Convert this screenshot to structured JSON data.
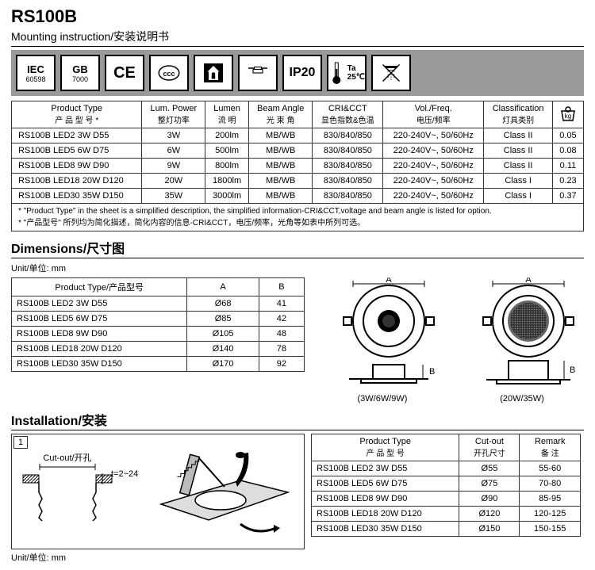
{
  "header": {
    "title": "RS100B",
    "subtitle": "Mounting instruction/安装说明书"
  },
  "badges": {
    "iec": "IEC",
    "iec_sub": "60598",
    "gb": "GB",
    "gb_sub": "7000",
    "ce": "CE",
    "ip20": "IP20",
    "ta": "Ta",
    "ta_val": "25℃"
  },
  "spec_table": {
    "headers": [
      {
        "en": "Product Type",
        "cn": "产 品 型 号 *"
      },
      {
        "en": "Lum. Power",
        "cn": "整灯功率"
      },
      {
        "en": "Lumen",
        "cn": "流 明"
      },
      {
        "en": "Beam Angle",
        "cn": "光 束 角"
      },
      {
        "en": "CRI&CCT",
        "cn": "显色指数&色温"
      },
      {
        "en": "Vol./Freq.",
        "cn": "电压/频率"
      },
      {
        "en": "Classification",
        "cn": "灯具类别"
      }
    ],
    "weight_icon_label": "kg",
    "rows": [
      {
        "type": "RS100B LED2 3W D55",
        "power": "3W",
        "lumen": "200lm",
        "beam": "MB/WB",
        "cri": "830/840/850",
        "vol": "220-240V~, 50/60Hz",
        "cls": "Class II",
        "wt": "0.05"
      },
      {
        "type": "RS100B LED5 6W D75",
        "power": "6W",
        "lumen": "500lm",
        "beam": "MB/WB",
        "cri": "830/840/850",
        "vol": "220-240V~, 50/60Hz",
        "cls": "Class II",
        "wt": "0.08"
      },
      {
        "type": "RS100B LED8 9W D90",
        "power": "9W",
        "lumen": "800lm",
        "beam": "MB/WB",
        "cri": "830/840/850",
        "vol": "220-240V~, 50/60Hz",
        "cls": "Class II",
        "wt": "0.11"
      },
      {
        "type": "RS100B LED18 20W D120",
        "power": "20W",
        "lumen": "1800lm",
        "beam": "MB/WB",
        "cri": "830/840/850",
        "vol": "220-240V~, 50/60Hz",
        "cls": "Class I",
        "wt": "0.23"
      },
      {
        "type": "RS100B LED30 35W D150",
        "power": "35W",
        "lumen": "3000lm",
        "beam": "MB/WB",
        "cri": "830/840/850",
        "vol": "220-240V~, 50/60Hz",
        "cls": "Class I",
        "wt": "0.37"
      }
    ],
    "footnote_en": "* \"Product Type\" in the sheet is a simplified description, the simplified information-CRI&CCT,voltage and beam angle is listed for option.",
    "footnote_cn": "* \"产品型号\" 所列均为简化描述，简化内容的信息-CRI&CCT，电压/频率，光角等如表中所列可选。"
  },
  "dimensions": {
    "title": "Dimensions/尺寸图",
    "unit": "Unit/单位: mm",
    "headers": {
      "type": "Product Type/产品型号",
      "a": "A",
      "b": "B"
    },
    "rows": [
      {
        "type": "RS100B LED2 3W D55",
        "a": "Ø68",
        "b": "41"
      },
      {
        "type": "RS100B LED5 6W D75",
        "a": "Ø85",
        "b": "42"
      },
      {
        "type": "RS100B LED8 9W D90",
        "a": "Ø105",
        "b": "48"
      },
      {
        "type": "RS100B LED18 20W D120",
        "a": "Ø140",
        "b": "78"
      },
      {
        "type": "RS100B LED30 35W D150",
        "a": "Ø170",
        "b": "92"
      }
    ],
    "dia_a": "A",
    "dia_b": "B",
    "dia1_label": "(3W/6W/9W)",
    "dia2_label": "(20W/35W)"
  },
  "installation": {
    "title": "Installation/安装",
    "step": "1",
    "cutout_label": "Cut-out/开孔",
    "thickness": "t=2~24",
    "unit": "Unit/单位: mm",
    "headers": {
      "type_en": "Product Type",
      "type_cn": "产 品 型 号",
      "cut_en": "Cut-out",
      "cut_cn": "开孔尺寸",
      "rem_en": "Remark",
      "rem_cn": "备   注"
    },
    "rows": [
      {
        "type": "RS100B LED2 3W D55",
        "cut": "Ø55",
        "rem": "55-60"
      },
      {
        "type": "RS100B LED5 6W D75",
        "cut": "Ø75",
        "rem": "70-80"
      },
      {
        "type": "RS100B LED8 9W D90",
        "cut": "Ø90",
        "rem": "85-95"
      },
      {
        "type": "RS100B LED18 20W D120",
        "cut": "Ø120",
        "rem": "120-125"
      },
      {
        "type": "RS100B LED30 35W D150",
        "cut": "Ø150",
        "rem": "150-155"
      }
    ]
  }
}
